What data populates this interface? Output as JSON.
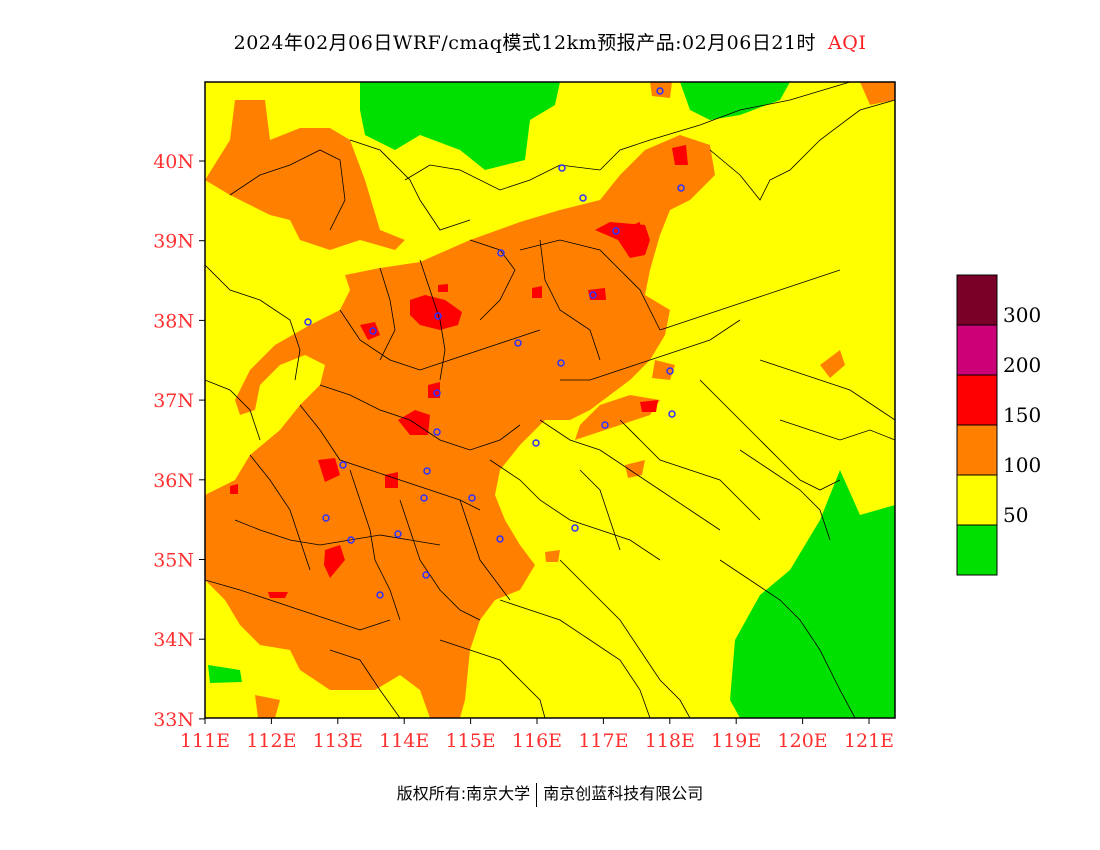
{
  "title": {
    "text": "2024年02月06日WRF/cmaq模式12km预报产品:02月06日21时",
    "tag": "AQI"
  },
  "footer": {
    "left": "版权所有:南京大学",
    "right": "南京创蓝科技有限公司"
  },
  "axes": {
    "x_ticks": [
      "111E",
      "112E",
      "113E",
      "114E",
      "115E",
      "116E",
      "117E",
      "118E",
      "119E",
      "120E",
      "121E"
    ],
    "y_ticks": [
      "40N",
      "39N",
      "38N",
      "37N",
      "36N",
      "35N",
      "34N",
      "33N"
    ]
  },
  "legend": {
    "labels": [
      "300",
      "200",
      "150",
      "100",
      "50"
    ],
    "colors": [
      "#7a0028",
      "#cc0077",
      "#ff0000",
      "#ff8000",
      "#ffff00",
      "#00e000"
    ]
  },
  "colors": {
    "good": "#00e000",
    "moderate": "#ffff00",
    "unhealthy_sensitive": "#ff8000",
    "unhealthy": "#ff0000",
    "very_unhealthy": "#cc0077",
    "hazardous": "#7a0028",
    "axis_label": "#ff3030",
    "city_marker": "#3030ff"
  }
}
